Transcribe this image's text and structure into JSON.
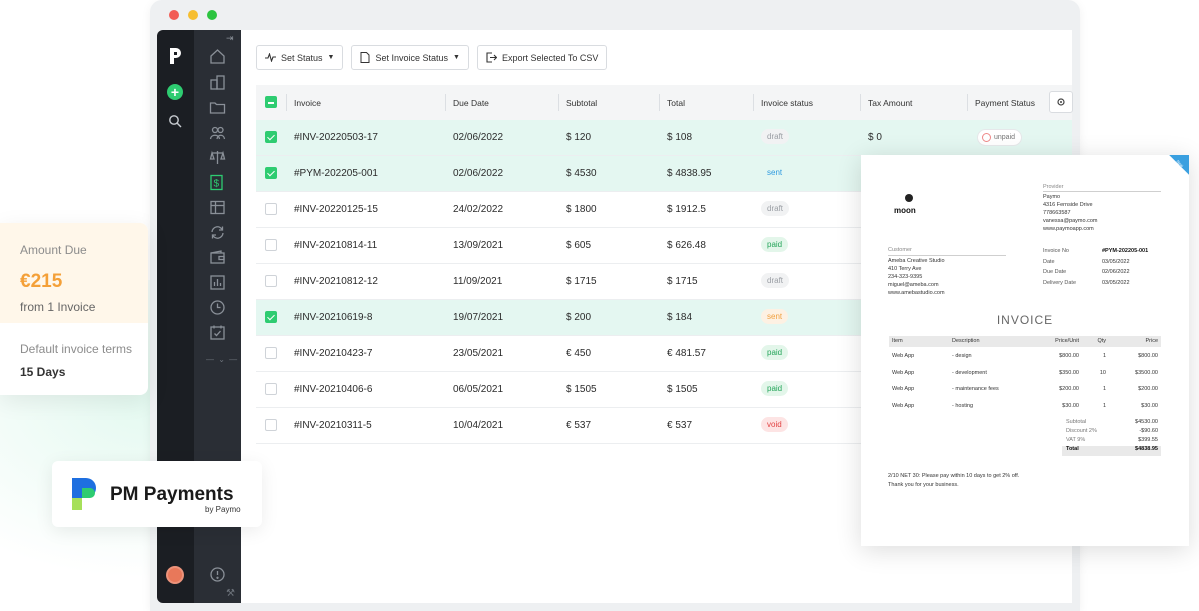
{
  "toolbar": {
    "set_status": "Set Status",
    "set_invoice_status": "Set Invoice Status",
    "export_csv": "Export Selected To CSV"
  },
  "table": {
    "columns": [
      "Invoice",
      "Due Date",
      "Subtotal",
      "Total",
      "Invoice status",
      "Tax Amount",
      "Payment Status"
    ],
    "rows": [
      {
        "invoice": "#INV-20220503-17",
        "due": "02/06/2022",
        "subtotal": "$ 120",
        "total": "$ 108",
        "status": "draft",
        "tax": "$ 0",
        "payment": "unpaid",
        "selected": true
      },
      {
        "invoice": "#PYM-202205-001",
        "due": "02/06/2022",
        "subtotal": "$ 4530",
        "total": "$ 4838.95",
        "status": "sent",
        "selected": true
      },
      {
        "invoice": "#INV-20220125-15",
        "due": "24/02/2022",
        "subtotal": "$ 1800",
        "total": "$ 1912.5",
        "status": "draft",
        "selected": false
      },
      {
        "invoice": "#INV-20210814-11",
        "due": "13/09/2021",
        "subtotal": "$ 605",
        "total": "$ 626.48",
        "status": "paid",
        "selected": false
      },
      {
        "invoice": "#INV-20210812-12",
        "due": "11/09/2021",
        "subtotal": "$ 1715",
        "total": "$ 1715",
        "status": "draft",
        "selected": false
      },
      {
        "invoice": "#INV-20210619-8",
        "due": "19/07/2021",
        "subtotal": "$ 200",
        "total": "$ 184",
        "status": "sent",
        "selected": true
      },
      {
        "invoice": "#INV-20210423-7",
        "due": "23/05/2021",
        "subtotal": "€ 450",
        "total": "€ 481.57",
        "status": "paid",
        "selected": false
      },
      {
        "invoice": "#INV-20210406-6",
        "due": "06/05/2021",
        "subtotal": "$ 1505",
        "total": "$ 1505",
        "status": "paid",
        "selected": false
      },
      {
        "invoice": "#INV-20210311-5",
        "due": "10/04/2021",
        "subtotal": "€ 537",
        "total": "€ 537",
        "status": "void",
        "selected": false
      }
    ]
  },
  "amount_card": {
    "label": "Amount Due",
    "value": "€215",
    "sub": "from 1 Invoice",
    "terms_label": "Default invoice terms",
    "terms_value": "15 Days"
  },
  "pm": {
    "title": "PM Payments",
    "by": "by Paymo"
  },
  "doc": {
    "ribbon": "New",
    "brand": "moon",
    "provider_label": "Provider",
    "provider": [
      "Paymo",
      "4316 Fernside Drive",
      "778663587",
      "vanessa@paymo.com",
      "www.paymoapp.com"
    ],
    "customer_label": "Customer",
    "customer": [
      "Ameba Creative Studio",
      "410 Terry Ave",
      "234-323-9395",
      "miguel@ameba.com",
      "www.amebastudio.com"
    ],
    "meta_labels": [
      "Invoice No",
      "Date",
      "Due Date",
      "Delivery Date"
    ],
    "meta_values": [
      "#PYM-202205-001",
      "03/05/2022",
      "02/06/2022",
      "03/05/2022"
    ],
    "title": "INVOICE",
    "item_headers": [
      "Item",
      "Description",
      "Price/Unit",
      "Qty",
      "Price"
    ],
    "items": [
      [
        "Web App",
        "- design",
        "$800.00",
        "1",
        "$800.00"
      ],
      [
        "Web App",
        "- development",
        "$350.00",
        "10",
        "$3500.00"
      ],
      [
        "Web App",
        "- maintenance fees",
        "$200.00",
        "1",
        "$200.00"
      ],
      [
        "Web App",
        "- hosting",
        "$30.00",
        "1",
        "$30.00"
      ]
    ],
    "totals": [
      [
        "Subtotal",
        "$4530.00"
      ],
      [
        "Discount  2%",
        "-$90.60"
      ],
      [
        "VAT  9%",
        "$399.55"
      ],
      [
        "Total",
        "$4838.95"
      ]
    ],
    "footer": [
      "2/10 NET 30: Please pay within 10 days to get 2% off.",
      "Thank you for your business."
    ]
  },
  "colors": {
    "accent": "#2ecc71",
    "amount": "#f4a038",
    "sent": "#2f9be0",
    "paid": "#25a55a",
    "void": "#e24444"
  }
}
